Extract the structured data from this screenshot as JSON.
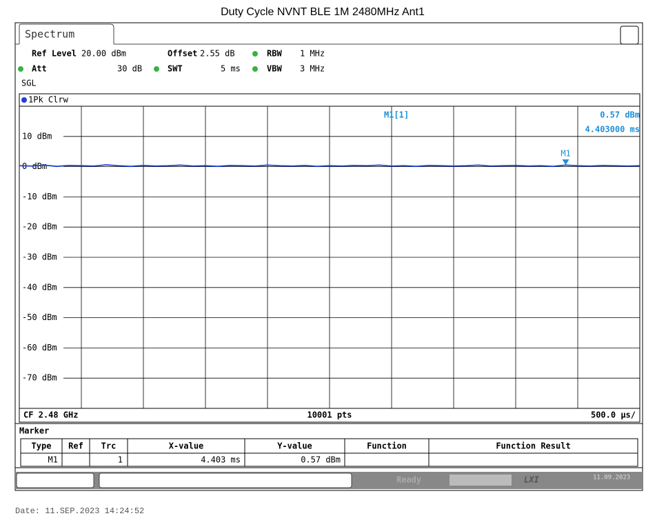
{
  "title": "Duty Cycle NVNT BLE 1M 2480MHz Ant1",
  "tab": "Spectrum",
  "settings": [
    {
      "label": "Ref Level",
      "value": "20.00 dBm"
    },
    {
      "label": "Offset",
      "value": "2.55 dB"
    },
    {
      "label": "RBW",
      "value": "1 MHz"
    },
    {
      "label": "Att",
      "value": "30 dB"
    },
    {
      "label": "SWT",
      "value": "5 ms"
    },
    {
      "label": "VBW",
      "value": "3 MHz"
    }
  ],
  "mode": "SGL",
  "chart_data": {
    "type": "line",
    "x": [
      0,
      0.1,
      0.2,
      0.3,
      0.4,
      0.5,
      0.6,
      0.7,
      0.8,
      0.9,
      1,
      1.1,
      1.2,
      1.3,
      1.4,
      1.5,
      1.6,
      1.7,
      1.8,
      1.9,
      2,
      2.1,
      2.2,
      2.3,
      2.4,
      2.5,
      2.6,
      2.7,
      2.8,
      2.9,
      3,
      3.1,
      3.2,
      3.3,
      3.4,
      3.5,
      3.6,
      3.7,
      3.8,
      3.9,
      4,
      4.1,
      4.2,
      4.3,
      4.4,
      4.5,
      4.6,
      4.7,
      4.8,
      4.9,
      5
    ],
    "series": [
      {
        "name": "1Pk Clrw",
        "color": "#1e3fd8",
        "values": [
          0.3,
          0.2,
          0.5,
          0.1,
          0.4,
          0.3,
          0.2,
          0.6,
          0.3,
          0.1,
          0.4,
          0.2,
          0.3,
          0.5,
          0.2,
          0.3,
          0.1,
          0.4,
          0.3,
          0.2,
          0.5,
          0.3,
          0.2,
          0.4,
          0.1,
          0.3,
          0.2,
          0.4,
          0.3,
          0.5,
          0.2,
          0.3,
          0.1,
          0.4,
          0.3,
          0.2,
          0.3,
          0.5,
          0.2,
          0.3,
          0.4,
          0.2,
          0.3,
          0.1,
          0.5,
          0.3,
          0.2,
          0.4,
          0.3,
          0.2,
          0.3
        ]
      }
    ],
    "xlim": [
      0,
      5
    ],
    "ylim": [
      -80,
      20
    ],
    "xticks": [
      0.5,
      1,
      1.5,
      2,
      2.5,
      3,
      3.5,
      4,
      4.5
    ],
    "yticks": [
      {
        "value": 10,
        "label": "10 dBm"
      },
      {
        "value": 0,
        "label": "0 dBm"
      },
      {
        "value": -10,
        "label": "-10 dBm"
      },
      {
        "value": -20,
        "label": "-20 dBm"
      },
      {
        "value": -30,
        "label": "-30 dBm"
      },
      {
        "value": -40,
        "label": "-40 dBm"
      },
      {
        "value": -50,
        "label": "-50 dBm"
      },
      {
        "value": -60,
        "label": "-60 dBm"
      },
      {
        "value": -70,
        "label": "-70 dBm"
      }
    ],
    "grid": true,
    "marker": {
      "label": "M1",
      "readout": "M1[1]",
      "x": 4.403,
      "y": 0.57,
      "y_label": "0.57 dBm",
      "x_label": "4.403000 ms",
      "color": "#1e90d8"
    },
    "footer_left": "CF 2.48 GHz",
    "footer_center": "10001 pts",
    "footer_right": "500.0 µs/"
  },
  "marker_table": {
    "title": "Marker",
    "headers": [
      "Type",
      "Ref",
      "Trc",
      "X-value",
      "Y-value",
      "Function",
      "Function Result"
    ],
    "row": {
      "type": "M1",
      "trc": "1",
      "x_value": "4.403 ms",
      "y_value": "0.57 dBm"
    }
  },
  "status": {
    "state": "Ready",
    "brand": "LXI",
    "date": "11.09.2023"
  },
  "date_line": "Date: 11.SEP.2023  14:24:52"
}
